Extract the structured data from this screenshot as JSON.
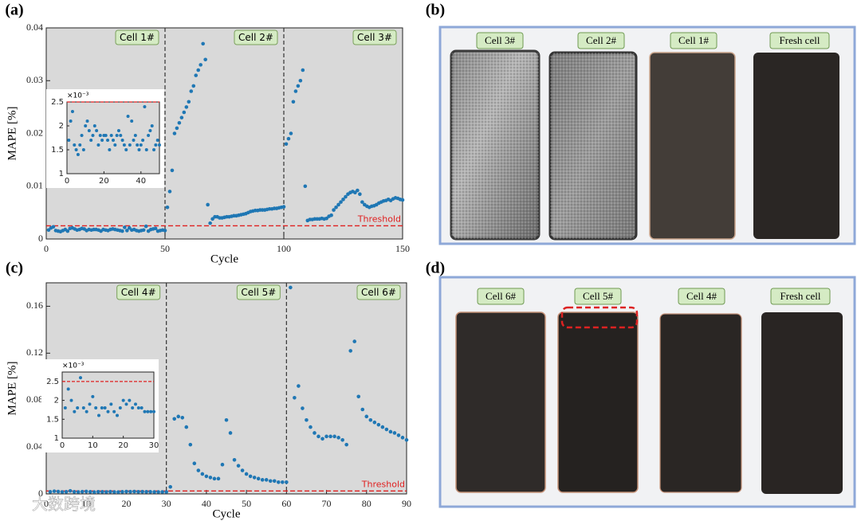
{
  "chart_data": [
    {
      "type": "scatter",
      "panel_label": "(a)",
      "xlabel": "Cycle",
      "ylabel": "MAPE [%]",
      "color": "#1f77b4",
      "xlim": [
        0,
        150
      ],
      "xticks": [
        0,
        50,
        100,
        150
      ],
      "ylim": [
        0,
        0.04
      ],
      "yticks": [
        0,
        0.01,
        0.02,
        0.03,
        0.04
      ],
      "dividers": [
        50,
        100
      ],
      "section_labels": [
        "Cell 1#",
        "Cell 2#",
        "Cell 3#"
      ],
      "threshold": 0.0025,
      "threshold_label": "Threshold",
      "x": [
        1,
        2,
        3,
        4,
        5,
        6,
        7,
        8,
        9,
        10,
        11,
        12,
        13,
        14,
        15,
        16,
        17,
        18,
        19,
        20,
        21,
        22,
        23,
        24,
        25,
        26,
        27,
        28,
        29,
        30,
        31,
        32,
        33,
        34,
        35,
        36,
        37,
        38,
        39,
        40,
        41,
        42,
        43,
        44,
        45,
        46,
        47,
        48,
        49,
        50,
        51,
        52,
        53,
        54,
        55,
        56,
        57,
        58,
        59,
        60,
        61,
        62,
        63,
        64,
        65,
        66,
        67,
        68,
        69,
        70,
        71,
        72,
        73,
        74,
        75,
        76,
        77,
        78,
        79,
        80,
        81,
        82,
        83,
        84,
        85,
        86,
        87,
        88,
        89,
        90,
        91,
        92,
        93,
        94,
        95,
        96,
        97,
        98,
        99,
        100,
        101,
        102,
        103,
        104,
        105,
        106,
        107,
        108,
        109,
        110,
        111,
        112,
        113,
        114,
        115,
        116,
        117,
        118,
        119,
        120,
        121,
        122,
        123,
        124,
        125,
        126,
        127,
        128,
        129,
        130,
        131,
        132,
        133,
        134,
        135,
        136,
        137,
        138,
        139,
        140,
        141,
        142,
        143,
        144,
        145,
        146,
        147,
        148,
        149,
        150
      ],
      "values": [
        0.0017,
        0.0021,
        0.0023,
        0.0016,
        0.0015,
        0.0014,
        0.0016,
        0.0018,
        0.0015,
        0.002,
        0.0021,
        0.0019,
        0.0017,
        0.0018,
        0.002,
        0.0019,
        0.0016,
        0.0018,
        0.0017,
        0.0018,
        0.0018,
        0.0017,
        0.0015,
        0.0018,
        0.0017,
        0.0016,
        0.0018,
        0.0019,
        0.0018,
        0.0017,
        0.0016,
        0.0015,
        0.0022,
        0.0016,
        0.0021,
        0.0017,
        0.0018,
        0.0016,
        0.0015,
        0.0016,
        0.0017,
        0.0024,
        0.0015,
        0.0018,
        0.0019,
        0.002,
        0.0015,
        0.0016,
        0.0017,
        0.0016,
        0.006,
        0.009,
        0.013,
        0.02,
        0.021,
        0.022,
        0.023,
        0.024,
        0.025,
        0.026,
        0.028,
        0.029,
        0.031,
        0.032,
        0.033,
        0.037,
        0.034,
        0.0065,
        0.003,
        0.0038,
        0.0042,
        0.0042,
        0.004,
        0.004,
        0.0041,
        0.0042,
        0.0042,
        0.0043,
        0.0044,
        0.0044,
        0.0045,
        0.0046,
        0.0047,
        0.0048,
        0.005,
        0.0052,
        0.0053,
        0.0054,
        0.0054,
        0.0055,
        0.0055,
        0.0055,
        0.0056,
        0.0057,
        0.0057,
        0.0058,
        0.0058,
        0.0059,
        0.006,
        0.0061,
        0.018,
        0.019,
        0.02,
        0.026,
        0.028,
        0.029,
        0.03,
        0.032,
        0.01,
        0.0035,
        0.0037,
        0.0037,
        0.0038,
        0.0038,
        0.0038,
        0.0039,
        0.0038,
        0.0039,
        0.0043,
        0.0045,
        0.0055,
        0.006,
        0.0065,
        0.007,
        0.0075,
        0.008,
        0.0085,
        0.0088,
        0.009,
        0.0088,
        0.0092,
        0.0085,
        0.007,
        0.0065,
        0.0062,
        0.006,
        0.0062,
        0.0063,
        0.0065,
        0.0068,
        0.007,
        0.0072,
        0.0073,
        0.0075,
        0.0073,
        0.0076,
        0.0078,
        0.0077,
        0.0075,
        0.0074
      ],
      "inset": {
        "multiplier": "×10⁻³",
        "xlim": [
          0,
          50
        ],
        "xticks": [
          0,
          20,
          40
        ],
        "ylim": [
          1,
          2.5
        ],
        "yticks": [
          1,
          1.5,
          2,
          2.5
        ],
        "threshold": 2.5,
        "x": [
          1,
          2,
          3,
          4,
          5,
          6,
          7,
          8,
          9,
          10,
          11,
          12,
          13,
          14,
          15,
          16,
          17,
          18,
          19,
          20,
          21,
          22,
          23,
          24,
          25,
          26,
          27,
          28,
          29,
          30,
          31,
          32,
          33,
          34,
          35,
          36,
          37,
          38,
          39,
          40,
          41,
          42,
          43,
          44,
          45,
          46,
          47,
          48,
          49,
          50
        ],
        "values": [
          1.7,
          2.1,
          2.3,
          1.6,
          1.5,
          1.4,
          1.6,
          1.8,
          1.5,
          2.0,
          2.1,
          1.9,
          1.7,
          1.8,
          2.0,
          1.9,
          1.6,
          1.8,
          1.7,
          1.8,
          1.8,
          1.7,
          1.5,
          1.8,
          1.7,
          1.6,
          1.8,
          1.9,
          1.8,
          1.7,
          1.6,
          1.5,
          2.2,
          1.6,
          2.1,
          1.7,
          1.8,
          1.6,
          1.5,
          1.6,
          1.7,
          2.4,
          1.5,
          1.8,
          1.9,
          2.0,
          1.5,
          1.6,
          1.7,
          1.6
        ]
      }
    },
    {
      "type": "scatter",
      "panel_label": "(c)",
      "xlabel": "Cycle",
      "ylabel": "MAPE [%]",
      "color": "#1f77b4",
      "xlim": [
        0,
        90
      ],
      "xticks": [
        0,
        10,
        20,
        30,
        40,
        50,
        60,
        70,
        80,
        90
      ],
      "ylim": [
        0,
        0.18
      ],
      "yticks": [
        0,
        0.04,
        0.08,
        0.12,
        0.16
      ],
      "dividers": [
        30,
        60
      ],
      "section_labels": [
        "Cell 4#",
        "Cell 5#",
        "Cell 6#"
      ],
      "threshold": 0.0025,
      "threshold_label": "Threshold",
      "x": [
        1,
        2,
        3,
        4,
        5,
        6,
        7,
        8,
        9,
        10,
        11,
        12,
        13,
        14,
        15,
        16,
        17,
        18,
        19,
        20,
        21,
        22,
        23,
        24,
        25,
        26,
        27,
        28,
        29,
        30,
        31,
        32,
        33,
        34,
        35,
        36,
        37,
        38,
        39,
        40,
        41,
        42,
        43,
        44,
        45,
        46,
        47,
        48,
        49,
        50,
        51,
        52,
        53,
        54,
        55,
        56,
        57,
        58,
        59,
        60,
        61,
        62,
        63,
        64,
        65,
        66,
        67,
        68,
        69,
        70,
        71,
        72,
        73,
        74,
        75,
        76,
        77,
        78,
        79,
        80,
        81,
        82,
        83,
        84,
        85,
        86,
        87,
        88,
        89,
        90
      ],
      "values": [
        0.0018,
        0.0023,
        0.002,
        0.0017,
        0.0018,
        0.0026,
        0.0018,
        0.0017,
        0.0019,
        0.0021,
        0.0018,
        0.0016,
        0.0018,
        0.0018,
        0.0017,
        0.0019,
        0.0017,
        0.0016,
        0.0018,
        0.002,
        0.0019,
        0.002,
        0.0018,
        0.0019,
        0.0018,
        0.0018,
        0.0017,
        0.0017,
        0.0017,
        0.0017,
        0.006,
        0.064,
        0.066,
        0.065,
        0.057,
        0.042,
        0.026,
        0.02,
        0.017,
        0.015,
        0.014,
        0.013,
        0.013,
        0.025,
        0.063,
        0.052,
        0.029,
        0.024,
        0.02,
        0.017,
        0.015,
        0.014,
        0.013,
        0.012,
        0.012,
        0.011,
        0.011,
        0.01,
        0.01,
        0.01,
        0.176,
        0.082,
        0.092,
        0.073,
        0.063,
        0.057,
        0.052,
        0.049,
        0.047,
        0.049,
        0.049,
        0.049,
        0.048,
        0.046,
        0.042,
        0.122,
        0.13,
        0.083,
        0.072,
        0.066,
        0.063,
        0.061,
        0.059,
        0.057,
        0.055,
        0.053,
        0.052,
        0.05,
        0.048,
        0.046
      ],
      "inset": {
        "multiplier": "×10⁻³",
        "xlim": [
          0,
          30
        ],
        "xticks": [
          0,
          10,
          20,
          30
        ],
        "ylim": [
          1,
          2.75
        ],
        "yticks": [
          1,
          1.5,
          2,
          2.5
        ],
        "threshold": 2.5,
        "x": [
          1,
          2,
          3,
          4,
          5,
          6,
          7,
          8,
          9,
          10,
          11,
          12,
          13,
          14,
          15,
          16,
          17,
          18,
          19,
          20,
          21,
          22,
          23,
          24,
          25,
          26,
          27,
          28,
          29,
          30
        ],
        "values": [
          1.8,
          2.3,
          2.0,
          1.7,
          1.8,
          2.6,
          1.8,
          1.7,
          1.9,
          2.1,
          1.8,
          1.6,
          1.8,
          1.8,
          1.7,
          1.9,
          1.7,
          1.6,
          1.8,
          2.0,
          1.9,
          2.0,
          1.8,
          1.9,
          1.8,
          1.8,
          1.7,
          1.7,
          1.7,
          1.7
        ]
      }
    }
  ],
  "photos": [
    {
      "panel_label": "(b)",
      "labels": [
        "Cell 3#",
        "Cell 2#",
        "Cell 1#",
        "Fresh cell"
      ]
    },
    {
      "panel_label": "(d)",
      "labels": [
        "Cell 6#",
        "Cell 5#",
        "Cell 4#",
        "Fresh cell"
      ]
    }
  ],
  "watermark": "大数跨境"
}
